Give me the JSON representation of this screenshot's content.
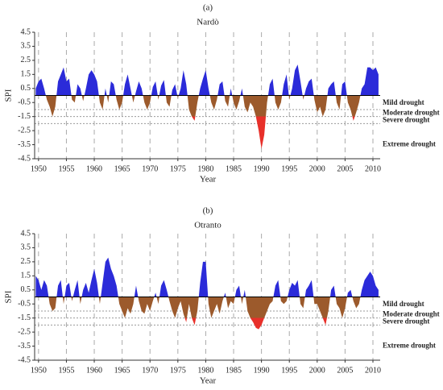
{
  "chart_data": [
    {
      "type": "area",
      "title": "(a)",
      "subtitle": "Nardò",
      "xlabel": "Year",
      "ylabel": "SPI",
      "xlim": [
        1949.3,
        2011.3
      ],
      "xticks": [
        1950,
        1955,
        1960,
        1965,
        1970,
        1975,
        1980,
        1985,
        1990,
        1995,
        2000,
        2005,
        2010
      ],
      "ylim": [
        -4.5,
        4.5
      ],
      "yticks": [
        4.5,
        3.5,
        2.5,
        1.5,
        0.5,
        -0.5,
        -1.5,
        -2.5,
        -3.5,
        -4.5
      ],
      "grid": true,
      "colors": {
        "positive": "#2b2bd9",
        "negative": "#9c5a2c",
        "extreme": "#e8302a"
      },
      "drought_lines": [
        -1,
        -1.5,
        -2
      ],
      "drought_labels": [
        "Mild drought",
        "Moderate drought",
        "Severe drought",
        "Extreme drought"
      ],
      "x": [
        1949.5,
        1950,
        1950.5,
        1951,
        1951.5,
        1952,
        1952.5,
        1953,
        1953.5,
        1954,
        1954.5,
        1955,
        1955.5,
        1956,
        1956.5,
        1957,
        1957.5,
        1958,
        1958.5,
        1959,
        1959.5,
        1960,
        1960.5,
        1961,
        1961.5,
        1962,
        1962.5,
        1963,
        1963.5,
        1964,
        1964.5,
        1965,
        1965.5,
        1966,
        1966.5,
        1967,
        1967.5,
        1968,
        1968.5,
        1969,
        1969.5,
        1970,
        1970.5,
        1971,
        1971.5,
        1972,
        1972.5,
        1973,
        1973.5,
        1974,
        1974.5,
        1975,
        1975.5,
        1976,
        1976.5,
        1977,
        1977.5,
        1978,
        1978.5,
        1979,
        1979.5,
        1980,
        1980.5,
        1981,
        1981.5,
        1982,
        1982.5,
        1983,
        1983.5,
        1984,
        1984.5,
        1985,
        1985.5,
        1986,
        1986.5,
        1987,
        1987.5,
        1988,
        1988.5,
        1989,
        1989.5,
        1990,
        1990.5,
        1991,
        1991.5,
        1992,
        1992.5,
        1993,
        1993.5,
        1994,
        1994.5,
        1995,
        1995.5,
        1996,
        1996.5,
        1997,
        1997.5,
        1998,
        1998.5,
        1999,
        1999.5,
        2000,
        2000.5,
        2001,
        2001.5,
        2002,
        2002.5,
        2003,
        2003.5,
        2004,
        2004.5,
        2005,
        2005.5,
        2006,
        2006.5,
        2007,
        2007.5,
        2008,
        2008.5,
        2009,
        2009.5,
        2010,
        2010.5,
        2011
      ],
      "values": [
        0.5,
        1.0,
        1.2,
        0.5,
        -0.3,
        -0.8,
        -1.5,
        -0.8,
        1.0,
        1.5,
        2.0,
        1.0,
        1.2,
        -0.3,
        -0.5,
        0.8,
        0.5,
        -0.4,
        0.5,
        1.5,
        1.8,
        1.5,
        1.0,
        -0.5,
        -1.0,
        0.5,
        -0.5,
        1.0,
        0.8,
        -0.3,
        -1.0,
        -0.5,
        0.8,
        1.5,
        0.5,
        -0.5,
        0.3,
        1.0,
        0.5,
        -0.5,
        -1.0,
        -0.5,
        0.6,
        1.0,
        -0.3,
        0.7,
        1.1,
        -0.5,
        -0.8,
        0.4,
        0.8,
        -0.2,
        0.5,
        1.8,
        0.8,
        -1.0,
        -1.5,
        -1.8,
        -0.5,
        0.5,
        1.2,
        1.8,
        0.5,
        -0.5,
        -1.0,
        -0.3,
        0.8,
        1.0,
        -0.4,
        -0.8,
        0.5,
        -0.5,
        -1.0,
        -0.4,
        0.5,
        -0.8,
        -1.2,
        -0.5,
        -0.8,
        -1.5,
        -2.5,
        -3.8,
        -2.8,
        -0.5,
        0.8,
        1.2,
        -0.5,
        -1.0,
        -0.5,
        0.8,
        1.5,
        -0.3,
        0.5,
        1.8,
        2.2,
        1.0,
        -0.3,
        0.5,
        1.0,
        1.2,
        -0.3,
        -1.2,
        -0.8,
        -1.5,
        -1.0,
        0.5,
        0.8,
        1.0,
        -0.5,
        -1.0,
        0.8,
        1.0,
        -0.5,
        -1.0,
        -1.8,
        -1.2,
        -0.5,
        0.5,
        0.8,
        2.0,
        2.0,
        1.8,
        2.0,
        1.5
      ]
    },
    {
      "type": "area",
      "title": "(b)",
      "subtitle": "Otranto",
      "xlabel": "Year",
      "ylabel": "SPI",
      "xlim": [
        1949.3,
        2011.3
      ],
      "xticks": [
        1950,
        1955,
        1960,
        1965,
        1970,
        1975,
        1980,
        1985,
        1990,
        1995,
        2000,
        2005,
        2010
      ],
      "ylim": [
        -4.5,
        4.5
      ],
      "yticks": [
        4.5,
        3.5,
        2.5,
        1.5,
        0.5,
        -0.5,
        -1.5,
        -2.5,
        -3.5,
        -4.5
      ],
      "grid": true,
      "colors": {
        "positive": "#2b2bd9",
        "negative": "#9c5a2c",
        "extreme": "#e8302a"
      },
      "drought_lines": [
        -1,
        -1.5,
        -2
      ],
      "drought_labels": [
        "Mild drought",
        "Moderate drought",
        "Severe drought",
        "Extreme drought"
      ],
      "x": [
        1949.5,
        1950,
        1950.5,
        1951,
        1951.5,
        1952,
        1952.5,
        1953,
        1953.5,
        1954,
        1954.5,
        1955,
        1955.5,
        1956,
        1956.5,
        1957,
        1957.5,
        1958,
        1958.5,
        1959,
        1959.5,
        1960,
        1960.5,
        1961,
        1961.5,
        1962,
        1962.5,
        1963,
        1963.5,
        1964,
        1964.5,
        1965,
        1965.5,
        1966,
        1966.5,
        1967,
        1967.5,
        1968,
        1968.5,
        1969,
        1969.5,
        1970,
        1970.5,
        1971,
        1971.5,
        1972,
        1972.5,
        1973,
        1973.5,
        1974,
        1974.5,
        1975,
        1975.5,
        1976,
        1976.5,
        1977,
        1977.5,
        1978,
        1978.5,
        1979,
        1979.5,
        1980,
        1980.5,
        1981,
        1981.5,
        1982,
        1982.5,
        1983,
        1983.5,
        1984,
        1984.5,
        1985,
        1985.5,
        1986,
        1986.5,
        1987,
        1987.5,
        1988,
        1988.5,
        1989,
        1989.5,
        1990,
        1990.5,
        1991,
        1991.5,
        1992,
        1992.5,
        1993,
        1993.5,
        1994,
        1994.5,
        1995,
        1995.5,
        1996,
        1996.5,
        1997,
        1997.5,
        1998,
        1998.5,
        1999,
        1999.5,
        2000,
        2000.5,
        2001,
        2001.5,
        2002,
        2002.5,
        2003,
        2003.5,
        2004,
        2004.5,
        2005,
        2005.5,
        2006,
        2006.5,
        2007,
        2007.5,
        2008,
        2008.5,
        2009,
        2009.5,
        2010,
        2010.5,
        2011
      ],
      "values": [
        1.5,
        1.2,
        0.5,
        1.2,
        0.8,
        -0.5,
        -1.0,
        -0.8,
        0.8,
        1.2,
        -0.5,
        0.8,
        1.0,
        -0.3,
        0.5,
        1.2,
        -0.5,
        0.5,
        1.0,
        0.3,
        1.2,
        2.0,
        1.0,
        -0.5,
        1.0,
        2.5,
        2.8,
        2.0,
        1.5,
        0.8,
        -0.5,
        -1.0,
        -1.5,
        -0.8,
        -1.2,
        -0.5,
        0.8,
        -0.3,
        -1.0,
        -1.2,
        -0.5,
        -1.0,
        -0.3,
        0.3,
        -0.5,
        0.8,
        1.2,
        0.5,
        -0.3,
        -1.0,
        -1.5,
        -0.8,
        -0.3,
        -1.2,
        -1.8,
        -0.5,
        -1.5,
        -2.0,
        -1.0,
        1.0,
        2.5,
        2.5,
        -0.5,
        -1.5,
        -1.0,
        -0.5,
        -1.2,
        -0.3,
        0.3,
        -0.8,
        -0.3,
        -0.5,
        0.5,
        0.8,
        -0.5,
        0.5,
        -1.0,
        -1.5,
        -1.8,
        -2.2,
        -2.3,
        -2.0,
        -1.5,
        -1.0,
        -0.5,
        -0.3,
        0.8,
        1.2,
        -0.3,
        -0.5,
        -0.3,
        0.5,
        1.0,
        0.8,
        1.2,
        -0.5,
        -0.8,
        0.5,
        0.8,
        1.2,
        -0.5,
        -0.5,
        -1.0,
        -1.5,
        -2.0,
        -1.0,
        0.5,
        0.8,
        -0.5,
        -0.8,
        -1.5,
        -0.8,
        0.3,
        0.5,
        -0.3,
        -0.8,
        -0.5,
        0.5,
        1.2,
        1.5,
        1.8,
        1.5,
        0.8,
        0.5
      ]
    }
  ]
}
